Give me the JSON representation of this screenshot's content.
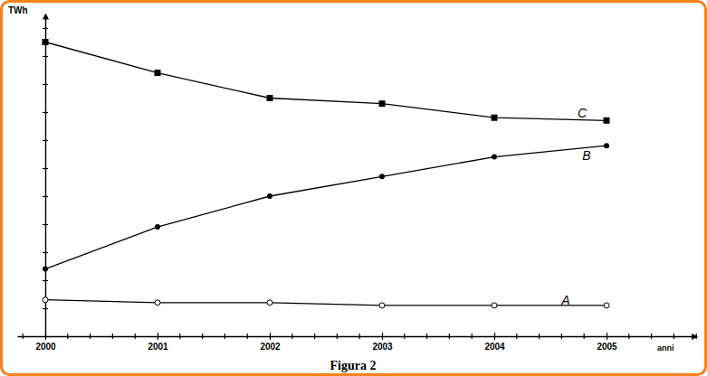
{
  "chart_data": {
    "type": "line",
    "title": "Figura 2",
    "x_label": "anni",
    "y_label": "TWh",
    "x": [
      2000,
      2001,
      2002,
      2003,
      2004,
      2005
    ],
    "xlim": [
      1999.75,
      2005.8
    ],
    "xticks": [
      2000,
      2001,
      2002,
      2003,
      2004,
      2005
    ],
    "ylim": [
      0,
      11.5
    ],
    "yticks": [
      1,
      2,
      3,
      4,
      5,
      6,
      7,
      8,
      9,
      10,
      11
    ],
    "tick_labels": "x",
    "grid": false,
    "series": [
      {
        "name": "A",
        "color": "#000000",
        "marker": "circle-open",
        "values": [
          1.3,
          1.2,
          1.2,
          1.1,
          1.1,
          1.1
        ]
      },
      {
        "name": "B",
        "color": "#000000",
        "marker": "circle",
        "values": [
          2.4,
          3.9,
          5.0,
          5.7,
          6.4,
          6.8
        ]
      },
      {
        "name": "C",
        "color": "#000000",
        "marker": "square",
        "values": [
          10.5,
          9.4,
          8.5,
          8.3,
          7.8,
          7.7
        ]
      }
    ]
  }
}
